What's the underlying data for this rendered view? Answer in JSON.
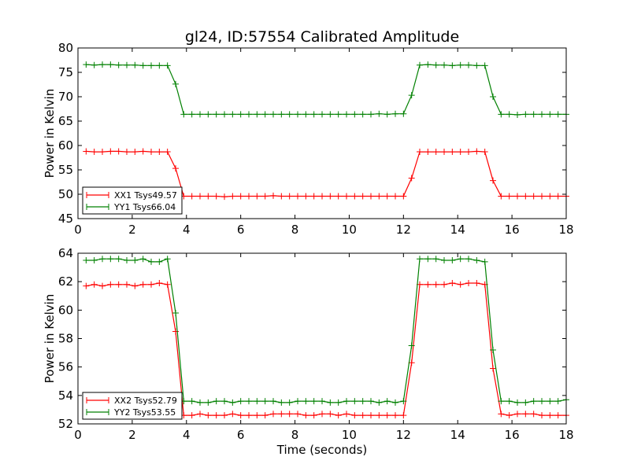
{
  "title": "gl24, ID:57554 Calibrated Amplitude",
  "chart_data": [
    {
      "type": "line",
      "ylabel": "Power in Kelvin",
      "xlabel": "",
      "xlim": [
        0,
        18
      ],
      "ylim": [
        45,
        80
      ],
      "xticks": [
        "0",
        "2",
        "4",
        "6",
        "8",
        "10",
        "12",
        "14",
        "16",
        "18"
      ],
      "yticks": [
        "45",
        "50",
        "55",
        "60",
        "65",
        "70",
        "75",
        "80"
      ],
      "legend_position": "lower-left",
      "x": [
        0.3,
        0.6,
        0.9,
        1.2,
        1.5,
        1.8,
        2.1,
        2.4,
        2.7,
        3.0,
        3.3,
        3.6,
        3.9,
        4.2,
        4.5,
        4.8,
        5.1,
        5.4,
        5.7,
        6.0,
        6.3,
        6.6,
        6.9,
        7.2,
        7.5,
        7.8,
        8.1,
        8.4,
        8.7,
        9.0,
        9.3,
        9.6,
        9.9,
        10.2,
        10.5,
        10.8,
        11.1,
        11.4,
        11.7,
        12.0,
        12.3,
        12.6,
        12.9,
        13.2,
        13.5,
        13.8,
        14.1,
        14.4,
        14.7,
        15.0,
        15.3,
        15.6,
        15.9,
        16.2,
        16.5,
        16.8,
        17.1,
        17.4,
        17.7,
        18.0
      ],
      "series": [
        {
          "name": "XX1 Tsys49.57",
          "color": "#ff0000",
          "values": [
            58.8,
            58.7,
            58.7,
            58.8,
            58.8,
            58.7,
            58.7,
            58.8,
            58.7,
            58.7,
            58.7,
            55.3,
            49.6,
            49.6,
            49.6,
            49.6,
            49.6,
            49.5,
            49.6,
            49.6,
            49.6,
            49.6,
            49.6,
            49.7,
            49.6,
            49.6,
            49.6,
            49.6,
            49.6,
            49.6,
            49.6,
            49.6,
            49.6,
            49.6,
            49.6,
            49.6,
            49.6,
            49.6,
            49.6,
            49.6,
            53.3,
            58.7,
            58.7,
            58.7,
            58.7,
            58.7,
            58.7,
            58.7,
            58.8,
            58.7,
            52.8,
            49.6,
            49.6,
            49.6,
            49.6,
            49.6,
            49.6,
            49.6,
            49.6,
            49.6
          ]
        },
        {
          "name": "YY1 Tsys66.04",
          "color": "#008000",
          "values": [
            76.6,
            76.5,
            76.6,
            76.6,
            76.5,
            76.5,
            76.5,
            76.4,
            76.4,
            76.4,
            76.4,
            72.6,
            66.4,
            66.4,
            66.4,
            66.4,
            66.4,
            66.4,
            66.4,
            66.4,
            66.4,
            66.4,
            66.4,
            66.4,
            66.4,
            66.4,
            66.4,
            66.4,
            66.4,
            66.4,
            66.4,
            66.4,
            66.4,
            66.4,
            66.4,
            66.4,
            66.5,
            66.4,
            66.5,
            66.5,
            70.3,
            76.5,
            76.6,
            76.5,
            76.5,
            76.4,
            76.5,
            76.5,
            76.4,
            76.4,
            70.0,
            66.4,
            66.4,
            66.3,
            66.4,
            66.4,
            66.4,
            66.4,
            66.4,
            66.4
          ]
        }
      ]
    },
    {
      "type": "line",
      "ylabel": "Power in Kelvin",
      "xlabel": "Time (seconds)",
      "xlim": [
        0,
        18
      ],
      "ylim": [
        52,
        64
      ],
      "xticks": [
        "0",
        "2",
        "4",
        "6",
        "8",
        "10",
        "12",
        "14",
        "16",
        "18"
      ],
      "yticks": [
        "52",
        "54",
        "56",
        "58",
        "60",
        "62",
        "64"
      ],
      "legend_position": "lower-left",
      "x": [
        0.3,
        0.6,
        0.9,
        1.2,
        1.5,
        1.8,
        2.1,
        2.4,
        2.7,
        3.0,
        3.3,
        3.6,
        3.9,
        4.2,
        4.5,
        4.8,
        5.1,
        5.4,
        5.7,
        6.0,
        6.3,
        6.6,
        6.9,
        7.2,
        7.5,
        7.8,
        8.1,
        8.4,
        8.7,
        9.0,
        9.3,
        9.6,
        9.9,
        10.2,
        10.5,
        10.8,
        11.1,
        11.4,
        11.7,
        12.0,
        12.3,
        12.6,
        12.9,
        13.2,
        13.5,
        13.8,
        14.1,
        14.4,
        14.7,
        15.0,
        15.3,
        15.6,
        15.9,
        16.2,
        16.5,
        16.8,
        17.1,
        17.4,
        17.7,
        18.0
      ],
      "series": [
        {
          "name": "XX2 Tsys52.79",
          "color": "#ff0000",
          "values": [
            61.7,
            61.8,
            61.7,
            61.8,
            61.8,
            61.8,
            61.7,
            61.8,
            61.8,
            61.9,
            61.8,
            58.5,
            52.6,
            52.6,
            52.7,
            52.6,
            52.6,
            52.6,
            52.7,
            52.6,
            52.6,
            52.6,
            52.6,
            52.7,
            52.7,
            52.7,
            52.7,
            52.6,
            52.6,
            52.7,
            52.7,
            52.6,
            52.7,
            52.6,
            52.6,
            52.6,
            52.6,
            52.6,
            52.6,
            52.6,
            56.3,
            61.8,
            61.8,
            61.8,
            61.8,
            61.9,
            61.8,
            61.9,
            61.9,
            61.8,
            55.9,
            52.7,
            52.6,
            52.7,
            52.7,
            52.7,
            52.6,
            52.6,
            52.6,
            52.6
          ]
        },
        {
          "name": "YY2 Tsys53.55",
          "color": "#008000",
          "values": [
            63.5,
            63.5,
            63.6,
            63.6,
            63.6,
            63.5,
            63.5,
            63.6,
            63.4,
            63.4,
            63.6,
            59.8,
            53.6,
            53.6,
            53.5,
            53.5,
            53.6,
            53.6,
            53.5,
            53.6,
            53.6,
            53.6,
            53.6,
            53.6,
            53.5,
            53.5,
            53.6,
            53.6,
            53.6,
            53.6,
            53.5,
            53.5,
            53.6,
            53.6,
            53.6,
            53.6,
            53.5,
            53.6,
            53.5,
            53.6,
            57.5,
            63.6,
            63.6,
            63.6,
            63.5,
            63.5,
            63.6,
            63.6,
            63.5,
            63.4,
            57.2,
            53.6,
            53.6,
            53.5,
            53.5,
            53.6,
            53.6,
            53.6,
            53.6,
            53.7
          ]
        }
      ]
    }
  ]
}
